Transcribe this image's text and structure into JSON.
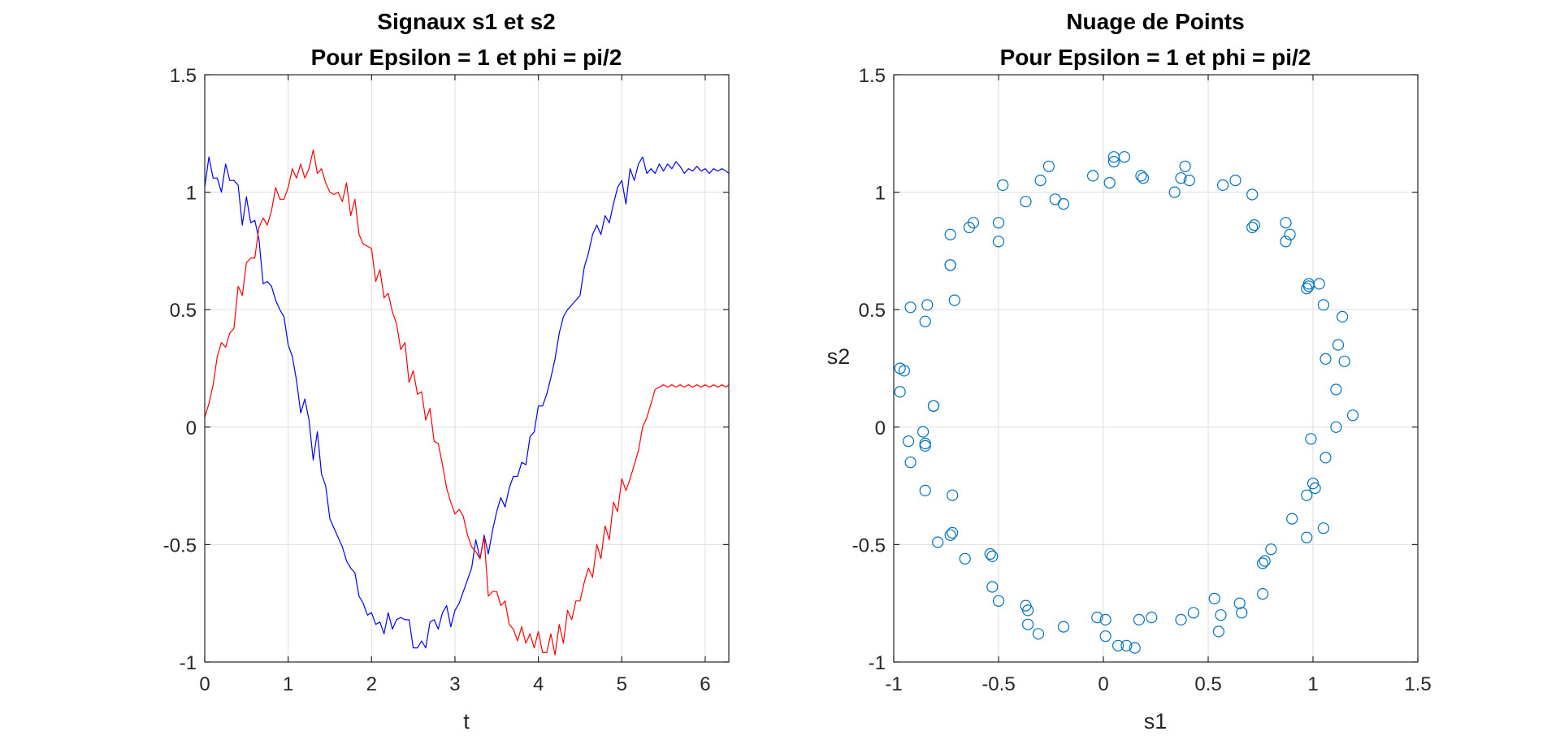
{
  "chart_data": [
    {
      "type": "line",
      "title": [
        "Signaux s1 et s2",
        "Pour Epsilon = 1 et phi = pi/2"
      ],
      "xlabel": "t",
      "ylabel": "",
      "xlim": [
        0,
        6.2832
      ],
      "ylim": [
        -1,
        1.5
      ],
      "grid": true,
      "xticks": [
        0,
        1,
        2,
        3,
        4,
        5,
        6
      ],
      "xtick_labels": [
        "0",
        "1",
        "2",
        "3",
        "4",
        "5",
        "6"
      ],
      "yticks": [
        -1,
        -0.5,
        0,
        0.5,
        1,
        1.5
      ],
      "ytick_labels": [
        "-1",
        "-0.5",
        "0",
        "0.5",
        "1",
        "1.5"
      ],
      "x": [
        0,
        0.05,
        0.1,
        0.15,
        0.2,
        0.25,
        0.3,
        0.35,
        0.4,
        0.45,
        0.5,
        0.55,
        0.6,
        0.65,
        0.7,
        0.75,
        0.8,
        0.85,
        0.9,
        0.95,
        1.0,
        1.05,
        1.1,
        1.15,
        1.2,
        1.25,
        1.3,
        1.35,
        1.4,
        1.45,
        1.5,
        1.55,
        1.6,
        1.65,
        1.7,
        1.75,
        1.8,
        1.85,
        1.9,
        1.95,
        2.0,
        2.05,
        2.1,
        2.15,
        2.2,
        2.25,
        2.3,
        2.35,
        2.4,
        2.45,
        2.5,
        2.55,
        2.6,
        2.65,
        2.7,
        2.75,
        2.8,
        2.85,
        2.9,
        2.95,
        3.0,
        3.05,
        3.1,
        3.15,
        3.2,
        3.25,
        3.3,
        3.35,
        3.4,
        3.45,
        3.5,
        3.55,
        3.6,
        3.65,
        3.7,
        3.75,
        3.8,
        3.85,
        3.9,
        3.95,
        4.0,
        4.05,
        4.1,
        4.15,
        4.2,
        4.25,
        4.3,
        4.35,
        4.4,
        4.45,
        4.5,
        4.55,
        4.6,
        4.65,
        4.7,
        4.75,
        4.8,
        4.85,
        4.9,
        4.95,
        5.0,
        5.05,
        5.1,
        5.15,
        5.2,
        5.25,
        5.3,
        5.35,
        5.4,
        5.45,
        5.5,
        5.55,
        5.6,
        5.65,
        5.7,
        5.75,
        5.8,
        5.85,
        5.9,
        5.95,
        6.0,
        6.05,
        6.1,
        6.15,
        6.2,
        6.25,
        6.2832
      ],
      "series": [
        {
          "color": "#0000ff",
          "values": [
            1.02,
            1.15,
            1.06,
            1.06,
            1.0,
            1.12,
            1.05,
            1.05,
            1.03,
            0.86,
            0.98,
            0.87,
            0.88,
            0.8,
            0.61,
            0.62,
            0.6,
            0.54,
            0.5,
            0.47,
            0.35,
            0.3,
            0.2,
            0.06,
            0.12,
            0.03,
            -0.14,
            -0.02,
            -0.2,
            -0.25,
            -0.39,
            -0.43,
            -0.47,
            -0.51,
            -0.57,
            -0.6,
            -0.62,
            -0.72,
            -0.75,
            -0.8,
            -0.79,
            -0.84,
            -0.83,
            -0.88,
            -0.79,
            -0.86,
            -0.82,
            -0.81,
            -0.82,
            -0.82,
            -0.94,
            -0.94,
            -0.91,
            -0.94,
            -0.83,
            -0.82,
            -0.86,
            -0.79,
            -0.76,
            -0.85,
            -0.78,
            -0.75,
            -0.7,
            -0.65,
            -0.6,
            -0.48,
            -0.56,
            -0.46,
            -0.54,
            -0.44,
            -0.36,
            -0.3,
            -0.34,
            -0.26,
            -0.21,
            -0.21,
            -0.15,
            -0.16,
            -0.04,
            -0.02,
            0.09,
            0.09,
            0.14,
            0.21,
            0.29,
            0.4,
            0.47,
            0.5,
            0.52,
            0.54,
            0.56,
            0.68,
            0.74,
            0.82,
            0.86,
            0.82,
            0.9,
            0.87,
            0.95,
            1.02,
            1.05,
            0.95,
            1.1,
            1.05,
            1.12,
            1.15,
            1.08,
            1.1,
            1.08,
            1.12,
            1.09,
            1.12,
            1.1,
            1.13,
            1.11,
            1.08,
            1.1,
            1.09,
            1.11,
            1.09,
            1.1,
            1.08,
            1.1,
            1.09,
            1.1,
            1.09,
            1.08
          ]
        },
        {
          "color": "#ff0000",
          "values": [
            0.04,
            0.1,
            0.18,
            0.3,
            0.36,
            0.34,
            0.4,
            0.42,
            0.6,
            0.56,
            0.7,
            0.72,
            0.72,
            0.85,
            0.89,
            0.86,
            0.92,
            1.02,
            0.97,
            0.97,
            1.02,
            1.1,
            1.06,
            1.12,
            1.06,
            1.1,
            1.18,
            1.08,
            1.1,
            1.04,
            1.0,
            0.99,
            1.0,
            0.96,
            1.04,
            0.9,
            0.97,
            0.82,
            0.78,
            0.77,
            0.76,
            0.62,
            0.67,
            0.55,
            0.57,
            0.49,
            0.44,
            0.33,
            0.36,
            0.19,
            0.24,
            0.14,
            0.15,
            0.03,
            0.08,
            -0.06,
            -0.07,
            -0.16,
            -0.26,
            -0.32,
            -0.37,
            -0.35,
            -0.38,
            -0.46,
            -0.51,
            -0.53,
            -0.56,
            -0.47,
            -0.72,
            -0.7,
            -0.7,
            -0.76,
            -0.74,
            -0.84,
            -0.86,
            -0.91,
            -0.85,
            -0.92,
            -0.88,
            -0.94,
            -0.87,
            -0.96,
            -0.96,
            -0.88,
            -0.97,
            -0.84,
            -0.92,
            -0.78,
            -0.82,
            -0.74,
            -0.74,
            -0.66,
            -0.6,
            -0.64,
            -0.5,
            -0.56,
            -0.42,
            -0.48,
            -0.32,
            -0.36,
            -0.22,
            -0.27,
            -0.22,
            -0.16,
            -0.1,
            0.0,
            0.04,
            0.1,
            0.16,
            0.17,
            0.18,
            0.17,
            0.18,
            0.17,
            0.18,
            0.17,
            0.18,
            0.17,
            0.18,
            0.17,
            0.18,
            0.17,
            0.18,
            0.17,
            0.18,
            0.17,
            0.18
          ]
        }
      ]
    },
    {
      "type": "scatter",
      "title": [
        "Nuage de Points",
        "Pour Epsilon = 1 et phi = pi/2"
      ],
      "xlabel": "s1",
      "ylabel": "s2",
      "xlim": [
        -1,
        1.5
      ],
      "ylim": [
        -1,
        1.5
      ],
      "grid": true,
      "xticks": [
        -1,
        -0.5,
        0,
        0.5,
        1,
        1.5
      ],
      "xtick_labels": [
        "-1",
        "-0.5",
        "0",
        "0.5",
        "1",
        "1.5"
      ],
      "yticks": [
        -1,
        -0.5,
        0,
        0.5,
        1,
        1.5
      ],
      "ytick_labels": [
        "-1",
        "-0.5",
        "0",
        "0.5",
        "1",
        "1.5"
      ],
      "marker_color": "#0072bd",
      "points": [
        [
          0.05,
          1.15
        ],
        [
          0.1,
          1.15
        ],
        [
          0.05,
          1.13
        ],
        [
          -0.26,
          1.11
        ],
        [
          0.39,
          1.11
        ],
        [
          0.18,
          1.07
        ],
        [
          0.37,
          1.06
        ],
        [
          0.19,
          1.06
        ],
        [
          -0.05,
          1.07
        ],
        [
          -0.3,
          1.05
        ],
        [
          0.41,
          1.05
        ],
        [
          0.63,
          1.05
        ],
        [
          0.03,
          1.04
        ],
        [
          -0.48,
          1.03
        ],
        [
          0.57,
          1.03
        ],
        [
          0.34,
          1.0
        ],
        [
          0.71,
          0.99
        ],
        [
          -0.23,
          0.97
        ],
        [
          -0.37,
          0.96
        ],
        [
          -0.19,
          0.95
        ],
        [
          -0.5,
          0.87
        ],
        [
          -0.62,
          0.87
        ],
        [
          -0.64,
          0.85
        ],
        [
          0.71,
          0.85
        ],
        [
          0.72,
          0.86
        ],
        [
          0.87,
          0.87
        ],
        [
          0.89,
          0.82
        ],
        [
          -0.73,
          0.82
        ],
        [
          0.87,
          0.79
        ],
        [
          -0.5,
          0.79
        ],
        [
          -0.73,
          0.69
        ],
        [
          -0.73,
          0.69
        ],
        [
          1.03,
          0.61
        ],
        [
          0.98,
          0.61
        ],
        [
          0.98,
          0.6
        ],
        [
          0.97,
          0.59
        ],
        [
          -0.71,
          0.54
        ],
        [
          -0.84,
          0.52
        ],
        [
          1.05,
          0.52
        ],
        [
          -0.92,
          0.51
        ],
        [
          1.14,
          0.47
        ],
        [
          -0.85,
          0.45
        ],
        [
          1.12,
          0.35
        ],
        [
          1.06,
          0.29
        ],
        [
          1.15,
          0.28
        ],
        [
          -0.97,
          0.25
        ],
        [
          -0.95,
          0.24
        ],
        [
          -0.97,
          0.15
        ],
        [
          1.11,
          0.16
        ],
        [
          -0.81,
          0.09
        ],
        [
          -0.81,
          0.09
        ],
        [
          1.19,
          0.05
        ],
        [
          1.11,
          0.0
        ],
        [
          -0.86,
          -0.02
        ],
        [
          -0.93,
          -0.06
        ],
        [
          -0.85,
          -0.07
        ],
        [
          -0.85,
          -0.08
        ],
        [
          0.99,
          -0.05
        ],
        [
          1.06,
          -0.13
        ],
        [
          -0.92,
          -0.15
        ],
        [
          1.0,
          -0.24
        ],
        [
          1.01,
          -0.26
        ],
        [
          -0.85,
          -0.27
        ],
        [
          0.97,
          -0.29
        ],
        [
          -0.72,
          -0.29
        ],
        [
          0.9,
          -0.39
        ],
        [
          1.05,
          -0.43
        ],
        [
          -0.72,
          -0.45
        ],
        [
          -0.73,
          -0.46
        ],
        [
          0.97,
          -0.47
        ],
        [
          -0.79,
          -0.49
        ],
        [
          0.8,
          -0.52
        ],
        [
          -0.54,
          -0.54
        ],
        [
          -0.53,
          -0.55
        ],
        [
          -0.66,
          -0.56
        ],
        [
          0.77,
          -0.57
        ],
        [
          0.76,
          -0.58
        ],
        [
          -0.53,
          -0.68
        ],
        [
          0.76,
          -0.71
        ],
        [
          0.53,
          -0.73
        ],
        [
          -0.5,
          -0.74
        ],
        [
          0.65,
          -0.75
        ],
        [
          -0.37,
          -0.76
        ],
        [
          -0.36,
          -0.78
        ],
        [
          0.43,
          -0.79
        ],
        [
          0.66,
          -0.79
        ],
        [
          0.56,
          -0.8
        ],
        [
          -0.03,
          -0.81
        ],
        [
          0.23,
          -0.81
        ],
        [
          0.01,
          -0.82
        ],
        [
          0.17,
          -0.82
        ],
        [
          0.37,
          -0.82
        ],
        [
          -0.36,
          -0.84
        ],
        [
          -0.19,
          -0.85
        ],
        [
          0.55,
          -0.87
        ],
        [
          -0.31,
          -0.88
        ],
        [
          0.01,
          -0.89
        ],
        [
          0.07,
          -0.93
        ],
        [
          0.11,
          -0.93
        ],
        [
          0.15,
          -0.94
        ]
      ]
    }
  ]
}
